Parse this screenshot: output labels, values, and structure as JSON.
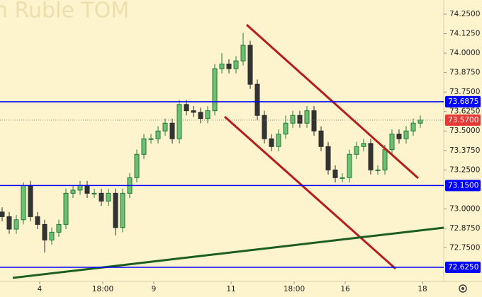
{
  "chart_data": {
    "type": "candlestick",
    "title": "n Ruble TOM",
    "x": [
      0,
      1,
      2,
      3,
      4,
      5,
      6,
      7,
      8,
      9,
      10,
      11,
      12,
      13,
      14,
      15,
      16,
      17,
      18,
      19,
      20,
      21,
      22,
      23,
      24,
      25,
      26,
      27,
      28,
      29,
      30,
      31,
      32,
      33,
      34,
      35,
      36,
      37,
      38,
      39,
      40,
      41,
      42,
      43,
      44,
      45,
      46,
      47,
      48,
      49,
      50,
      51,
      52,
      53,
      54,
      55,
      56,
      57,
      58,
      59
    ],
    "open": [
      72.98,
      72.95,
      72.87,
      72.93,
      73.15,
      72.95,
      72.9,
      72.8,
      72.85,
      72.9,
      73.1,
      73.12,
      73.15,
      73.1,
      73.1,
      73.05,
      73.1,
      72.88,
      73.1,
      73.2,
      73.35,
      73.45,
      73.45,
      73.5,
      73.55,
      73.45,
      73.67,
      73.63,
      73.62,
      73.58,
      73.63,
      73.9,
      73.93,
      73.9,
      73.95,
      74.05,
      73.8,
      73.6,
      73.45,
      73.4,
      73.48,
      73.55,
      73.6,
      73.55,
      73.63,
      73.5,
      73.4,
      73.25,
      73.2,
      73.2,
      73.35,
      73.4,
      73.42,
      73.25,
      73.25,
      73.38,
      73.48,
      73.45,
      73.5,
      73.55
    ],
    "high": [
      73.01,
      72.98,
      72.96,
      73.17,
      73.18,
      72.98,
      72.93,
      72.88,
      72.93,
      73.13,
      73.15,
      73.18,
      73.18,
      73.13,
      73.13,
      73.13,
      73.13,
      73.13,
      73.23,
      73.38,
      73.48,
      73.48,
      73.53,
      73.58,
      73.58,
      73.7,
      73.7,
      73.66,
      73.65,
      73.66,
      73.93,
      74.0,
      73.96,
      73.98,
      74.13,
      74.08,
      73.83,
      73.63,
      73.48,
      73.51,
      73.6,
      73.63,
      73.63,
      73.66,
      73.66,
      73.53,
      73.43,
      73.28,
      73.23,
      73.38,
      73.43,
      73.45,
      73.45,
      73.28,
      73.41,
      73.51,
      73.51,
      73.53,
      73.58,
      73.6
    ],
    "low": [
      72.92,
      72.84,
      72.84,
      72.9,
      72.92,
      72.87,
      72.72,
      72.77,
      72.82,
      72.87,
      73.07,
      73.09,
      73.07,
      73.07,
      73.02,
      73.02,
      72.83,
      72.85,
      73.07,
      73.17,
      73.32,
      73.42,
      73.42,
      73.47,
      73.42,
      73.42,
      73.6,
      73.59,
      73.55,
      73.55,
      73.6,
      73.87,
      73.87,
      73.87,
      73.92,
      73.77,
      73.57,
      73.42,
      73.37,
      73.37,
      73.45,
      73.52,
      73.52,
      73.52,
      73.47,
      73.37,
      73.22,
      73.17,
      73.17,
      73.17,
      73.32,
      73.37,
      73.22,
      73.22,
      73.22,
      73.35,
      73.42,
      73.42,
      73.47,
      73.52
    ],
    "close": [
      72.95,
      72.87,
      72.93,
      73.15,
      72.95,
      72.9,
      72.8,
      72.85,
      72.9,
      73.1,
      73.12,
      73.15,
      73.1,
      73.1,
      73.05,
      73.1,
      72.88,
      73.1,
      73.2,
      73.35,
      73.45,
      73.45,
      73.5,
      73.55,
      73.45,
      73.67,
      73.63,
      73.62,
      73.58,
      73.63,
      73.9,
      73.93,
      73.9,
      73.95,
      74.05,
      73.8,
      73.6,
      73.45,
      73.4,
      73.48,
      73.55,
      73.6,
      73.55,
      73.63,
      73.5,
      73.4,
      73.25,
      73.2,
      73.2,
      73.35,
      73.4,
      73.42,
      73.25,
      73.25,
      73.38,
      73.48,
      73.45,
      73.5,
      73.55,
      73.57
    ],
    "up_color": "#1e7b3c",
    "down_color": "#2b2b2b",
    "xlim": [
      -0.3,
      62.3
    ],
    "xticks": [
      {
        "value": 5.3,
        "label": "4"
      },
      {
        "value": 14.2,
        "label": "18:00"
      },
      {
        "value": 21.4,
        "label": "9"
      },
      {
        "value": 32.3,
        "label": "11"
      },
      {
        "value": 41.2,
        "label": "18:00"
      },
      {
        "value": 48.4,
        "label": "16"
      },
      {
        "value": 59.3,
        "label": "18"
      }
    ],
    "ylim": [
      72.534,
      74.341
    ],
    "yticks": [
      {
        "value": 74.25,
        "label": "74.2500"
      },
      {
        "value": 74.125,
        "label": "74.1250"
      },
      {
        "value": 74.0,
        "label": "74.0000"
      },
      {
        "value": 73.875,
        "label": "73.8750"
      },
      {
        "value": 73.75,
        "label": "73.7500"
      },
      {
        "value": 73.625,
        "label": "73.6250"
      },
      {
        "value": 73.5,
        "label": "73.5000"
      },
      {
        "value": 73.375,
        "label": "73.3750"
      },
      {
        "value": 73.25,
        "label": "73.2500"
      },
      {
        "value": 73.0,
        "label": "73.0000"
      },
      {
        "value": 72.875,
        "label": "72.8750"
      },
      {
        "value": 72.75,
        "label": "72.7500"
      }
    ],
    "levels": [
      {
        "value": 73.6875,
        "label": "73.6875",
        "color": "#0000ff"
      },
      {
        "value": 73.15,
        "label": "73.1500",
        "color": "#0000ff"
      },
      {
        "value": 72.625,
        "label": "72.6250",
        "color": "#0000ff"
      }
    ],
    "current_price": {
      "value": 73.57,
      "label": "73.5700",
      "color": "#e53935"
    },
    "trendlines": [
      {
        "x": [
          34.5,
          58.7
        ],
        "y": [
          74.182,
          73.197
        ],
        "color": "#b71c1c"
      },
      {
        "x": [
          31.4,
          55.5
        ],
        "y": [
          73.592,
          72.616
        ],
        "color": "#b71c1c"
      },
      {
        "x": [
          1.5,
          62.3
        ],
        "y": [
          72.557,
          72.879
        ],
        "color": "#1b5e20"
      }
    ]
  }
}
